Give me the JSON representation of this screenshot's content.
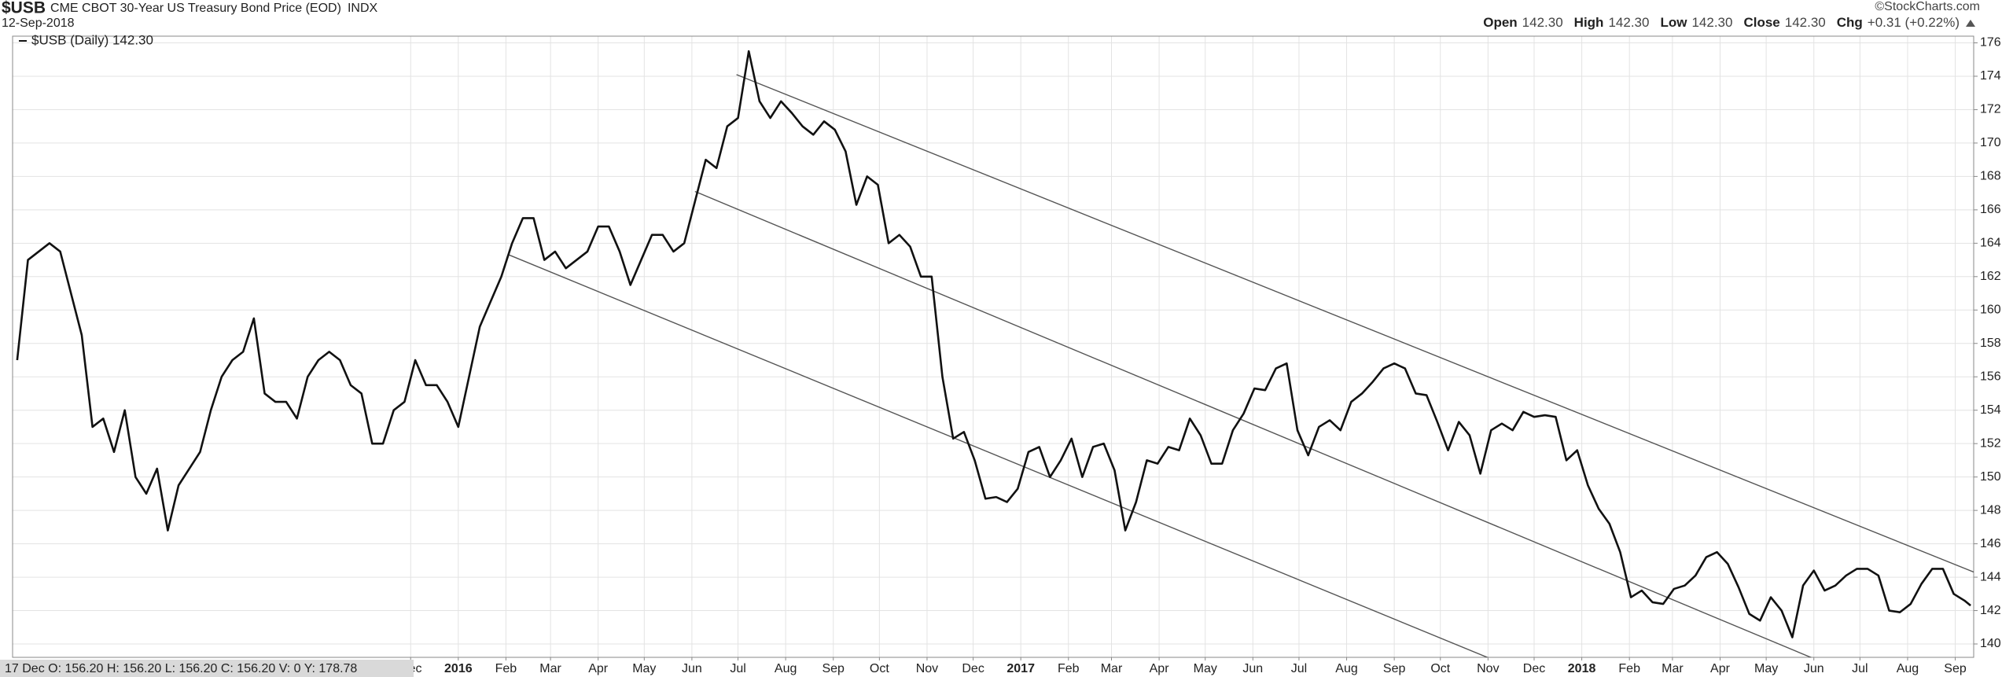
{
  "chart_data": {
    "type": "line",
    "title": "$USB",
    "subtitle": "CME CBOT 30-Year US Treasury Bond Price (EOD)",
    "exchange": "INDX",
    "date": "12-Sep-2018",
    "source": "©StockCharts.com",
    "quote": [
      {
        "label": "Open",
        "value": "142.30"
      },
      {
        "label": "High",
        "value": "142.30"
      },
      {
        "label": "Low",
        "value": "142.30"
      },
      {
        "label": "Close",
        "value": "142.30"
      },
      {
        "label": "Chg",
        "value": "+0.31 (+0.22%)"
      }
    ],
    "crosshair_info": "17 Dec O: 156.20 H: 156.20 L: 156.20 C: 156.20 V: 0 Y: 178.78",
    "grid": true,
    "xlim": [
      -290,
      986
    ],
    "ylim": [
      139.2,
      176.4
    ],
    "yticks": [
      140,
      142,
      144,
      146,
      148,
      150,
      152,
      154,
      156,
      158,
      160,
      162,
      164,
      166,
      168,
      170,
      172,
      174,
      176
    ],
    "xticks": [
      {
        "value": -31,
        "label": "Dec"
      },
      {
        "value": 0,
        "label": "2016"
      },
      {
        "value": 31,
        "label": "Feb"
      },
      {
        "value": 60,
        "label": "Mar"
      },
      {
        "value": 91,
        "label": "Apr"
      },
      {
        "value": 121,
        "label": "May"
      },
      {
        "value": 152,
        "label": "Jun"
      },
      {
        "value": 182,
        "label": "Jul"
      },
      {
        "value": 213,
        "label": "Aug"
      },
      {
        "value": 244,
        "label": "Sep"
      },
      {
        "value": 274,
        "label": "Oct"
      },
      {
        "value": 305,
        "label": "Nov"
      },
      {
        "value": 335,
        "label": "Dec"
      },
      {
        "value": 366,
        "label": "2017"
      },
      {
        "value": 397,
        "label": "Feb"
      },
      {
        "value": 425,
        "label": "Mar"
      },
      {
        "value": 456,
        "label": "Apr"
      },
      {
        "value": 486,
        "label": "May"
      },
      {
        "value": 517,
        "label": "Jun"
      },
      {
        "value": 547,
        "label": "Jul"
      },
      {
        "value": 578,
        "label": "Aug"
      },
      {
        "value": 609,
        "label": "Sep"
      },
      {
        "value": 639,
        "label": "Oct"
      },
      {
        "value": 670,
        "label": "Nov"
      },
      {
        "value": 700,
        "label": "Dec"
      },
      {
        "value": 731,
        "label": "2018"
      },
      {
        "value": 762,
        "label": "Feb"
      },
      {
        "value": 790,
        "label": "Mar"
      },
      {
        "value": 821,
        "label": "Apr"
      },
      {
        "value": 851,
        "label": "May"
      },
      {
        "value": 882,
        "label": "Jun"
      },
      {
        "value": 912,
        "label": "Jul"
      },
      {
        "value": 943,
        "label": "Aug"
      },
      {
        "value": 974,
        "label": "Sep"
      }
    ],
    "x": [
      -287,
      -280,
      -273,
      -266,
      -259,
      -252,
      -245,
      -238,
      -231,
      -224,
      -217,
      -210,
      -203,
      -196,
      -189,
      -182,
      -175,
      -168,
      -161,
      -154,
      -147,
      -140,
      -133,
      -126,
      -119,
      -112,
      -105,
      -98,
      -91,
      -84,
      -77,
      -70,
      -63,
      -56,
      -49,
      -42,
      -35,
      -28,
      -21,
      -14,
      -7,
      0,
      7,
      14,
      21,
      28,
      35,
      42,
      49,
      56,
      63,
      70,
      77,
      84,
      91,
      98,
      105,
      112,
      119,
      126,
      133,
      140,
      147,
      154,
      161,
      168,
      175,
      182,
      189,
      196,
      203,
      210,
      217,
      224,
      231,
      238,
      245,
      252,
      259,
      266,
      273,
      280,
      287,
      294,
      301,
      308,
      315,
      322,
      329,
      336,
      343,
      350,
      357,
      364,
      371,
      378,
      385,
      392,
      399,
      406,
      413,
      420,
      427,
      434,
      441,
      448,
      455,
      462,
      469,
      476,
      483,
      490,
      497,
      504,
      511,
      518,
      525,
      532,
      539,
      546,
      553,
      560,
      567,
      574,
      581,
      588,
      595,
      602,
      609,
      616,
      623,
      630,
      637,
      644,
      651,
      658,
      665,
      672,
      679,
      686,
      693,
      700,
      707,
      714,
      721,
      728,
      735,
      742,
      749,
      756,
      763,
      770,
      777,
      784,
      791,
      798,
      805,
      812,
      819,
      826,
      833,
      840,
      847,
      854,
      861,
      868,
      875,
      882,
      889,
      896,
      903,
      910,
      917,
      924,
      931,
      938,
      945,
      952,
      959,
      966,
      973,
      980,
      984
    ],
    "series": [
      {
        "name": "$USB (Daily) 142.30",
        "color": "#111111",
        "values": [
          157,
          163,
          163.5,
          164,
          163.5,
          161,
          158.5,
          153,
          153.5,
          151.5,
          154,
          150,
          149,
          150.5,
          146.8,
          149.5,
          150.5,
          151.5,
          154,
          156,
          157,
          157.5,
          159.5,
          155,
          154.5,
          154.5,
          153.5,
          156,
          157,
          157.5,
          157,
          155.5,
          155,
          152,
          152,
          154,
          154.5,
          157,
          155.5,
          155.5,
          154.5,
          153,
          156,
          159,
          160.5,
          162,
          164,
          165.5,
          165.5,
          163,
          163.5,
          162.5,
          163,
          163.5,
          165,
          165,
          163.5,
          161.5,
          163,
          164.5,
          164.5,
          163.5,
          164,
          166.5,
          169,
          168.5,
          171,
          171.5,
          175.5,
          172.5,
          171.5,
          172.5,
          171.8,
          171,
          170.5,
          171.3,
          170.8,
          169.5,
          166.3,
          168,
          167.5,
          164,
          164.5,
          163.8,
          162,
          162,
          156,
          152.3,
          152.7,
          151,
          148.7,
          148.8,
          148.5,
          149.3,
          151.5,
          151.8,
          150,
          151,
          152.3,
          150,
          151.8,
          152,
          150.4,
          146.8,
          148.5,
          151,
          150.8,
          151.8,
          151.6,
          153.5,
          152.5,
          150.8,
          150.8,
          152.8,
          153.8,
          155.3,
          155.2,
          156.5,
          156.8,
          152.8,
          151.3,
          153,
          153.4,
          152.8,
          154.5,
          155,
          155.7,
          156.5,
          156.8,
          156.5,
          155,
          154.9,
          153.3,
          151.6,
          153.3,
          152.5,
          150.2,
          152.8,
          153.2,
          152.8,
          153.9,
          153.6,
          153.7,
          153.6,
          151,
          151.6,
          149.5,
          148.1,
          147.2,
          145.5,
          142.8,
          143.2,
          142.5,
          142.4,
          143.3,
          143.5,
          144.1,
          145.2,
          145.5,
          144.8,
          143.4,
          141.8,
          141.4,
          142.8,
          142,
          140.4,
          143.5,
          144.4,
          143.2,
          143.5,
          144.1,
          144.5,
          144.5,
          144.1,
          142,
          141.9,
          142.4,
          143.6,
          144.5,
          144.5,
          143,
          142.6,
          142.3
        ]
      }
    ],
    "trendlines": [
      {
        "color": "#555555",
        "x": [
          181,
          989
        ],
        "y": [
          174.1,
          144.2
        ]
      },
      {
        "color": "#555555",
        "x": [
          154,
          893
        ],
        "y": [
          167.1,
          138.7
        ]
      },
      {
        "color": "#555555",
        "x": [
          33,
          688
        ],
        "y": [
          163.3,
          138.5
        ]
      }
    ]
  }
}
